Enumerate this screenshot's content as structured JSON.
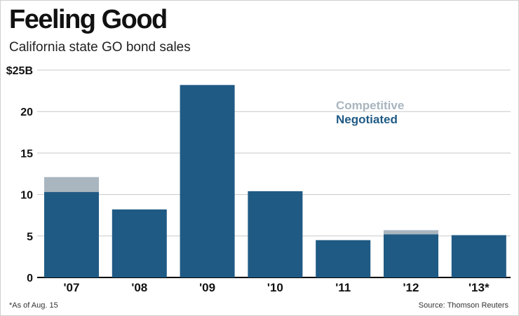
{
  "chart_data": {
    "type": "bar",
    "stacked": true,
    "title": "Feeling Good",
    "subtitle": "California state GO bond sales",
    "categories": [
      "'07",
      "'08",
      "'09",
      "'10",
      "'11",
      "'12",
      "'13*"
    ],
    "series": [
      {
        "name": "Negotiated",
        "values": [
          10.3,
          8.2,
          23.2,
          10.4,
          4.5,
          5.2,
          5.1
        ],
        "color": "#1f5a84"
      },
      {
        "name": "Competitive",
        "values": [
          1.8,
          0,
          0,
          0,
          0,
          0.5,
          0
        ],
        "color": "#a9b5bf"
      }
    ],
    "y_ticks": [
      0,
      5,
      10,
      15,
      20,
      25
    ],
    "y_tick_labels": [
      "0",
      "5",
      "10",
      "15",
      "20",
      "$25B"
    ],
    "ylim": [
      0,
      25
    ],
    "xlabel": "",
    "ylabel": "",
    "grid": true,
    "legend_position": "top-right",
    "footnote": "*As of Aug. 15",
    "source": "Source: Thomson Reuters"
  }
}
